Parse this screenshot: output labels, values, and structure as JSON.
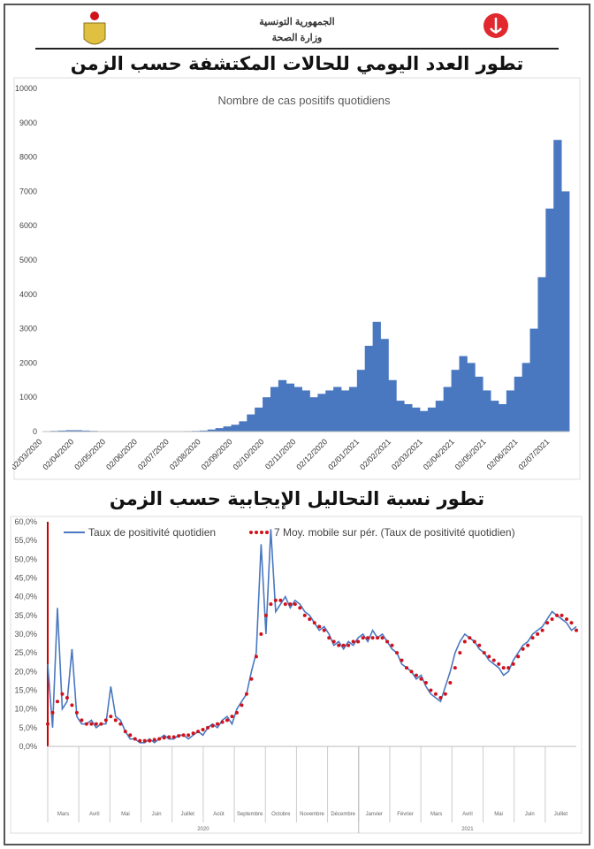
{
  "header": {
    "republic": "الجمهورية التونسية",
    "ministry": "وزارة الصحة",
    "title1": "تطور العدد اليومي للحالات المكتشفة حسب الزمن",
    "title2": "تطور نسبة التحاليل الإيجابية حسب الزمن"
  },
  "colors": {
    "bar": "#4a78c0",
    "line": "#4a78c0",
    "ma": "#d0121b"
  },
  "chart_data": [
    {
      "type": "bar",
      "title": "Nombre de cas positifs quotidiens",
      "ylim": [
        0,
        10000
      ],
      "yticks": [
        0,
        1000,
        2000,
        3000,
        4000,
        5000,
        6000,
        7000,
        8000,
        9000,
        10000
      ],
      "xticks": [
        "02/03/2020",
        "02/04/2020",
        "02/05/2020",
        "02/06/2020",
        "02/07/2020",
        "02/08/2020",
        "02/09/2020",
        "02/10/2020",
        "02/11/2020",
        "02/12/2020",
        "02/01/2021",
        "02/02/2021",
        "02/03/2021",
        "02/04/2021",
        "02/05/2021",
        "02/06/2021",
        "02/07/2021"
      ],
      "weekly_values": [
        5,
        20,
        30,
        40,
        40,
        30,
        20,
        10,
        5,
        2,
        2,
        1,
        2,
        2,
        5,
        5,
        5,
        10,
        15,
        20,
        30,
        60,
        100,
        150,
        200,
        300,
        500,
        700,
        1000,
        1300,
        1500,
        1400,
        1300,
        1200,
        1000,
        1100,
        1200,
        1300,
        1200,
        1300,
        1800,
        2500,
        3200,
        2700,
        1500,
        900,
        800,
        700,
        600,
        700,
        900,
        1300,
        1800,
        2200,
        2000,
        1600,
        1200,
        900,
        800,
        1200,
        1600,
        2000,
        3000,
        4500,
        6500,
        8500,
        7000
      ]
    },
    {
      "type": "line",
      "ylim": [
        0,
        60
      ],
      "yticks": [
        "0,0%",
        "5,0%",
        "10,0%",
        "15,0%",
        "20,0%",
        "25,0%",
        "30,0%",
        "35,0%",
        "40,0%",
        "45,0%",
        "50,0%",
        "55,0%",
        "60,0%"
      ],
      "legend": [
        "Taux de positivité quotidien",
        "7 Moy. mobile sur pér. (Taux de positivité quotidien)"
      ],
      "months": [
        "Mars",
        "Avril",
        "Mai",
        "Juin",
        "Juillet",
        "Août",
        "Septembre",
        "Octobre",
        "Novembre",
        "Décembre",
        "Janvier",
        "Février",
        "Mars",
        "Avril",
        "Mai",
        "Juin",
        "Juillet"
      ],
      "years": [
        "2020",
        "2021"
      ],
      "daily": [
        22,
        5,
        37,
        10,
        12,
        26,
        8,
        6,
        6,
        7,
        5,
        6,
        6,
        16,
        8,
        7,
        4,
        2,
        2,
        1,
        1,
        2,
        1,
        2,
        3,
        2,
        2,
        3,
        3,
        2,
        3,
        4,
        3,
        5,
        6,
        5,
        7,
        8,
        6,
        10,
        12,
        14,
        20,
        25,
        54,
        30,
        58,
        36,
        38,
        40,
        37,
        39,
        38,
        36,
        35,
        33,
        31,
        32,
        30,
        27,
        28,
        26,
        28,
        27,
        29,
        30,
        28,
        31,
        29,
        30,
        28,
        26,
        25,
        22,
        21,
        20,
        18,
        19,
        16,
        14,
        13,
        12,
        16,
        20,
        25,
        28,
        30,
        29,
        28,
        26,
        25,
        23,
        22,
        21,
        19,
        20,
        23,
        25,
        27,
        28,
        30,
        31,
        32,
        34,
        36,
        35,
        34,
        33,
        31,
        32
      ],
      "moving_avg": [
        6,
        9,
        12,
        14,
        13,
        11,
        9,
        7,
        6,
        6,
        6,
        6,
        7,
        8,
        7,
        6,
        4,
        3,
        2,
        1.5,
        1.5,
        1.5,
        1.8,
        2,
        2.3,
        2.5,
        2.5,
        2.8,
        3,
        3,
        3.5,
        4,
        4.5,
        5,
        5.5,
        6,
        6.5,
        7,
        8,
        9,
        11,
        14,
        18,
        24,
        30,
        35,
        38,
        39,
        39,
        38,
        38,
        38,
        37,
        35,
        34,
        33,
        32,
        31,
        29,
        28,
        27,
        27,
        27,
        28,
        28,
        29,
        29,
        29,
        29,
        29,
        28,
        27,
        25,
        23,
        21,
        20,
        19,
        18,
        17,
        15,
        14,
        13,
        14,
        17,
        21,
        25,
        28,
        29,
        28,
        27,
        25,
        24,
        23,
        22,
        21,
        21,
        22,
        24,
        26,
        27,
        29,
        30,
        31,
        33,
        34,
        35,
        35,
        34,
        33,
        31
      ]
    }
  ]
}
